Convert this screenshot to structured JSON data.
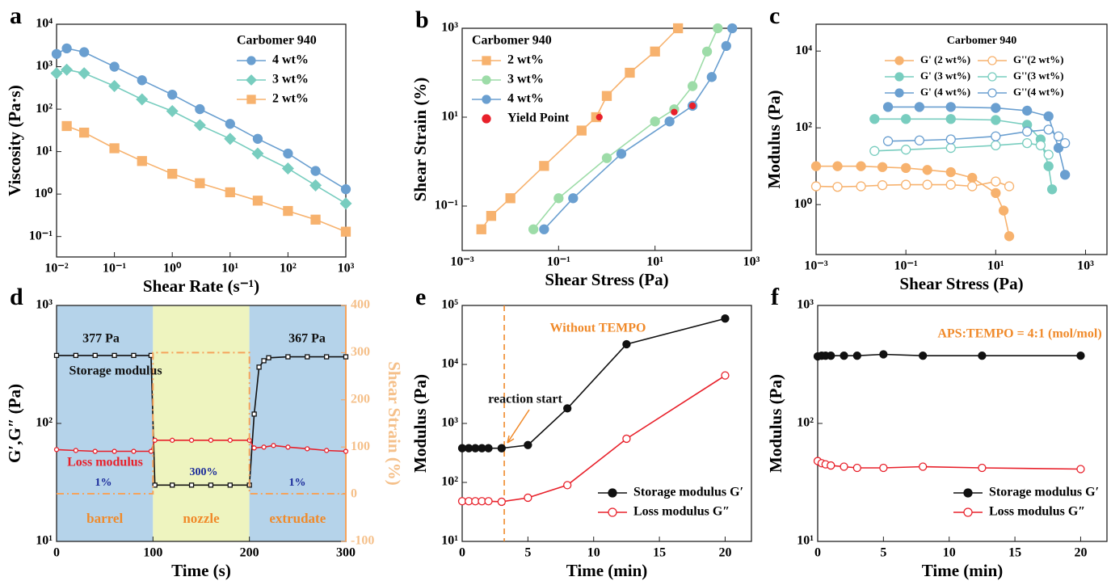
{
  "chart_data": [
    {
      "type": "line",
      "panel": "a",
      "xlabel": "Shear Rate (s⁻¹)",
      "ylabel": "Viscosity (Pa·s)",
      "xlog": true,
      "ylog": true,
      "xlim": [
        0.01,
        1000
      ],
      "ylim": [
        0.033,
        10000
      ],
      "xticks": [
        {
          "value": 0.01,
          "label": "10⁻²"
        },
        {
          "value": 0.1,
          "label": "10⁻¹"
        },
        {
          "value": 1,
          "label": "10⁰"
        },
        {
          "value": 10,
          "label": "10¹"
        },
        {
          "value": 100,
          "label": "10²"
        },
        {
          "value": 1000,
          "label": "10³"
        }
      ],
      "yticks": [
        {
          "value": 0.1,
          "label": "10⁻¹"
        },
        {
          "value": 1,
          "label": "10⁰"
        },
        {
          "value": 10,
          "label": "10¹"
        },
        {
          "value": 100,
          "label": "10²"
        },
        {
          "value": 1000,
          "label": "10³"
        },
        {
          "value": 10000,
          "label": "10⁴"
        }
      ],
      "legend": "upper right",
      "legend_title": "Carbomer 940",
      "series": [
        {
          "name": "4 wt%",
          "color": "#6a9fd0",
          "marker": "circle",
          "filled": true,
          "x": [
            0.01,
            0.015,
            0.03,
            0.1,
            0.3,
            1,
            3,
            10,
            30,
            100,
            300,
            1000
          ],
          "values": [
            2000,
            2700,
            2200,
            1000,
            480,
            220,
            100,
            45,
            20,
            9,
            3.5,
            1.3
          ]
        },
        {
          "name": "3 wt%",
          "color": "#78cdbf",
          "marker": "diamond",
          "filled": true,
          "x": [
            0.01,
            0.015,
            0.03,
            0.1,
            0.3,
            1,
            3,
            10,
            30,
            100,
            300,
            1000
          ],
          "values": [
            700,
            850,
            700,
            350,
            170,
            90,
            42,
            20,
            9,
            4,
            1.6,
            0.6
          ]
        },
        {
          "name": "2 wt%",
          "color": "#f7b26e",
          "marker": "square",
          "filled": true,
          "x": [
            0.015,
            0.03,
            0.1,
            0.3,
            1,
            3,
            10,
            30,
            100,
            300,
            1000
          ],
          "values": [
            40,
            28,
            12,
            6,
            3,
            1.8,
            1.1,
            0.7,
            0.4,
            0.25,
            0.13
          ]
        }
      ]
    },
    {
      "type": "line",
      "panel": "b",
      "xlabel": "Shear Stress (Pa)",
      "ylabel": "Shear Strain (%)",
      "xlog": true,
      "ylog": true,
      "xlim": [
        0.001,
        1000
      ],
      "ylim": [
        0.01,
        1000
      ],
      "xticks": [
        {
          "value": 0.001,
          "label": "10⁻³"
        },
        {
          "value": 0.1,
          "label": "10⁻¹"
        },
        {
          "value": 10,
          "label": "10¹"
        },
        {
          "value": 1000,
          "label": "10³"
        }
      ],
      "yticks": [
        {
          "value": 0.1,
          "label": "10⁻¹"
        },
        {
          "value": 10,
          "label": "10¹"
        },
        {
          "value": 1000,
          "label": "10³"
        }
      ],
      "legend": "upper left",
      "legend_title": "Carbomer 940",
      "series": [
        {
          "name": "2 wt%",
          "color": "#f7b26e",
          "marker": "square",
          "filled": true,
          "x": [
            0.0025,
            0.004,
            0.01,
            0.05,
            0.3,
            0.6,
            1,
            3,
            10,
            30
          ],
          "values": [
            0.03,
            0.06,
            0.15,
            0.8,
            5,
            10,
            30,
            100,
            300,
            1000
          ]
        },
        {
          "name": "3 wt%",
          "color": "#9ddca8",
          "marker": "circle",
          "filled": true,
          "x": [
            0.03,
            0.1,
            1,
            10,
            25,
            60,
            120,
            200
          ],
          "values": [
            0.03,
            0.15,
            1.2,
            8,
            15,
            50,
            300,
            1000
          ]
        },
        {
          "name": "4 wt%",
          "color": "#6a9fd0",
          "marker": "circle",
          "filled": true,
          "x": [
            0.05,
            0.2,
            2,
            20,
            60,
            150,
            300,
            400
          ],
          "values": [
            0.03,
            0.15,
            1.5,
            8,
            18,
            80,
            400,
            1000
          ]
        },
        {
          "name": "Yield Point",
          "color": "#e8202a",
          "marker": "circle",
          "filled": true,
          "noline": true,
          "size": 3.5,
          "x": [
            0.7,
            25,
            60
          ],
          "values": [
            10,
            13,
            18
          ]
        }
      ]
    },
    {
      "type": "line",
      "panel": "c",
      "xlabel": "Shear Stress (Pa)",
      "ylabel": "Modulus (Pa)",
      "xlog": true,
      "ylog": true,
      "xlim": [
        0.001,
        3000
      ],
      "ylim": [
        0.05,
        50000
      ],
      "xticks": [
        {
          "value": 0.001,
          "label": "10⁻³"
        },
        {
          "value": 0.1,
          "label": "10⁻¹"
        },
        {
          "value": 10,
          "label": "10¹"
        },
        {
          "value": 1000,
          "label": "10³"
        }
      ],
      "yticks": [
        {
          "value": 1,
          "label": "10⁰"
        },
        {
          "value": 100,
          "label": "10²"
        },
        {
          "value": 10000,
          "label": "10⁴"
        }
      ],
      "legend": "upper right",
      "legend_columns": 2,
      "legend_title": "Carbomer 940",
      "series": [
        {
          "name": "G' (2 wt%)",
          "color": "#f7b26e",
          "marker": "circle",
          "filled": true,
          "x": [
            0.001,
            0.003,
            0.01,
            0.03,
            0.1,
            0.3,
            1,
            3,
            10,
            15,
            20
          ],
          "values": [
            10,
            10,
            10,
            9.5,
            9,
            8,
            7,
            5,
            2,
            0.7,
            0.15
          ]
        },
        {
          "name": "G''(2 wt%)",
          "color": "#f7b26e",
          "marker": "circle",
          "filled": false,
          "x": [
            0.001,
            0.003,
            0.01,
            0.03,
            0.1,
            0.3,
            1,
            3,
            10,
            20
          ],
          "values": [
            3,
            2.9,
            3,
            3.2,
            3.3,
            3.3,
            3.3,
            3,
            4,
            3
          ]
        },
        {
          "name": "G' (3 wt%)",
          "color": "#78cdbf",
          "marker": "circle",
          "filled": true,
          "x": [
            0.02,
            0.1,
            1,
            10,
            50,
            100,
            150,
            180
          ],
          "values": [
            170,
            170,
            170,
            160,
            120,
            50,
            10,
            2.5
          ]
        },
        {
          "name": "G''(3 wt%)",
          "color": "#78cdbf",
          "marker": "circle",
          "filled": false,
          "x": [
            0.02,
            0.1,
            1,
            10,
            50,
            100,
            150
          ],
          "values": [
            25,
            27,
            30,
            35,
            40,
            35,
            20
          ]
        },
        {
          "name": "G' (4 wt%)",
          "color": "#6a9fd0",
          "marker": "circle",
          "filled": true,
          "x": [
            0.04,
            0.2,
            1,
            10,
            50,
            150,
            250,
            350
          ],
          "values": [
            350,
            350,
            350,
            330,
            280,
            200,
            30,
            6
          ]
        },
        {
          "name": "G''(4 wt%)",
          "color": "#6a9fd0",
          "marker": "circle",
          "filled": false,
          "x": [
            0.04,
            0.2,
            1,
            10,
            50,
            150,
            250,
            350
          ],
          "values": [
            45,
            47,
            50,
            60,
            80,
            90,
            60,
            40
          ]
        }
      ]
    },
    {
      "type": "line",
      "panel": "d",
      "xlabel": "Time (s)",
      "ylabel": "G′,G″ (Pa)",
      "y2label": "Shear Strain (%)",
      "xlog": false,
      "ylog": true,
      "xlim": [
        0,
        300
      ],
      "ylim": [
        10,
        1000
      ],
      "y2lim": [
        -100,
        400
      ],
      "xticks": [
        0,
        100,
        200,
        300
      ],
      "yticks": [
        {
          "value": 10,
          "label": "10¹"
        },
        {
          "value": 100,
          "label": "10²"
        },
        {
          "value": 1000,
          "label": "10³"
        }
      ],
      "y2ticks": [
        -100,
        0,
        100,
        200,
        300,
        400
      ],
      "regions": [
        {
          "label": "barrel",
          "from": 0,
          "to": 100,
          "color": "#b5d3ea"
        },
        {
          "label": "nozzle",
          "from": 100,
          "to": 200,
          "color": "#eef4bf"
        },
        {
          "label": "extrudate",
          "from": 200,
          "to": 300,
          "color": "#b5d3ea"
        }
      ],
      "annotations": [
        "377 Pa",
        "367 Pa",
        "Storage modulus",
        "Loss modulus",
        "1%",
        "300%",
        "1%"
      ],
      "series": [
        {
          "color": "#111111",
          "marker": "square",
          "filled": false,
          "size": 2.5,
          "x": [
            0,
            20,
            40,
            60,
            80,
            98,
            102,
            120,
            140,
            160,
            180,
            200,
            205,
            210,
            215,
            220,
            240,
            260,
            280,
            300
          ],
          "values": [
            377,
            377,
            377,
            377,
            377,
            377,
            30,
            30,
            30,
            30,
            30,
            30,
            120,
            300,
            340,
            360,
            367,
            367,
            367,
            367
          ]
        },
        {
          "color": "#e8202a",
          "marker": "circle",
          "filled": false,
          "size": 2.5,
          "x": [
            0,
            20,
            40,
            60,
            80,
            98,
            102,
            120,
            140,
            160,
            180,
            200,
            205,
            215,
            225,
            240,
            260,
            280,
            300
          ],
          "values": [
            60,
            59,
            58,
            58,
            58,
            58,
            72,
            72,
            72,
            72,
            72,
            72,
            62,
            63,
            65,
            63,
            61,
            59,
            58
          ]
        },
        {
          "color": "#f5a35c",
          "axis": "y2",
          "dash": true,
          "x": [
            0,
            100,
            100,
            200,
            200,
            300
          ],
          "values": [
            1,
            1,
            300,
            300,
            1,
            1
          ]
        }
      ]
    },
    {
      "type": "line",
      "panel": "e",
      "xlabel": "Time (min)",
      "ylabel": "Modulus (Pa)",
      "xlog": false,
      "ylog": true,
      "xlim": [
        0,
        22
      ],
      "ylim": [
        10,
        100000
      ],
      "xticks": [
        0,
        5,
        10,
        15,
        20
      ],
      "yticks": [
        {
          "value": 10,
          "label": "10¹"
        },
        {
          "value": 100,
          "label": "10²"
        },
        {
          "value": 1000,
          "label": "10³"
        },
        {
          "value": 10000,
          "label": "10⁴"
        },
        {
          "value": 100000,
          "label": "10⁵"
        }
      ],
      "vline": 3.2,
      "annotations": [
        "Without TEMPO",
        "reaction start"
      ],
      "legend": "lower right",
      "series": [
        {
          "name": "Storage modulus G′",
          "color": "#111111",
          "marker": "circle",
          "filled": true,
          "x": [
            0,
            0.5,
            1,
            1.5,
            2,
            3,
            5,
            8,
            12.5,
            20
          ],
          "values": [
            380,
            380,
            380,
            380,
            380,
            380,
            430,
            1800,
            22000,
            60000
          ]
        },
        {
          "name": "Loss modulus G″",
          "color": "#e8202a",
          "marker": "circle",
          "filled": false,
          "x": [
            0,
            0.5,
            1,
            1.5,
            2,
            3,
            5,
            8,
            12.5,
            20
          ],
          "values": [
            48,
            48,
            48,
            48,
            48,
            47,
            55,
            90,
            550,
            6500
          ]
        }
      ]
    },
    {
      "type": "line",
      "panel": "f",
      "xlabel": "Time (min)",
      "ylabel": "Modulus (Pa)",
      "xlog": false,
      "ylog": true,
      "xlim": [
        0,
        22
      ],
      "ylim": [
        10,
        1000
      ],
      "xticks": [
        0,
        5,
        10,
        15,
        20
      ],
      "yticks": [
        {
          "value": 10,
          "label": "10¹"
        },
        {
          "value": 100,
          "label": "10²"
        },
        {
          "value": 1000,
          "label": "10³"
        }
      ],
      "annotations": [
        "APS:TEMPO = 4:1 (mol/mol)"
      ],
      "legend": "lower right",
      "series": [
        {
          "name": "Storage modulus G′",
          "color": "#111111",
          "marker": "circle",
          "filled": true,
          "x": [
            0,
            0.3,
            0.6,
            1,
            2,
            3,
            5,
            8,
            12.5,
            20
          ],
          "values": [
            370,
            375,
            375,
            375,
            375,
            375,
            385,
            375,
            375,
            375
          ]
        },
        {
          "name": "Loss modulus G″",
          "color": "#e8202a",
          "marker": "circle",
          "filled": false,
          "x": [
            0,
            0.3,
            0.6,
            1,
            2,
            3,
            5,
            8,
            12.5,
            20
          ],
          "values": [
            48,
            46,
            45,
            44,
            43,
            42,
            42,
            43,
            42,
            41
          ]
        }
      ]
    }
  ]
}
